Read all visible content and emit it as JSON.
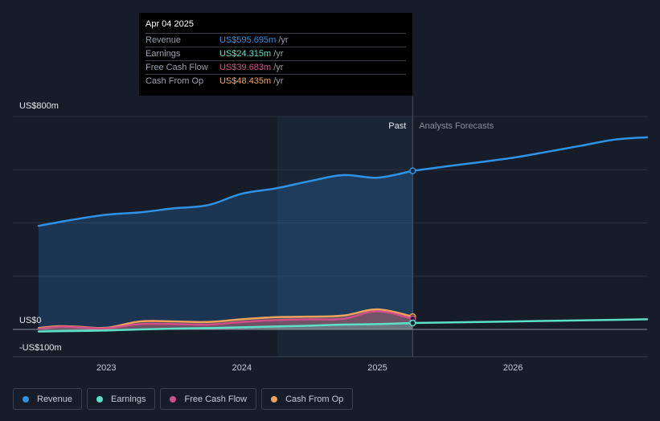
{
  "tooltip": {
    "date": "Apr 04 2025",
    "rows": [
      {
        "label": "Revenue",
        "value": "US$595.695m",
        "unit": "/yr",
        "color": "#2e93e6"
      },
      {
        "label": "Earnings",
        "value": "US$24.315m",
        "unit": "/yr",
        "color": "#5ce1c8"
      },
      {
        "label": "Free Cash Flow",
        "value": "US$39.683m",
        "unit": "/yr",
        "color": "#d04f8a"
      },
      {
        "label": "Cash From Op",
        "value": "US$48.435m",
        "unit": "/yr",
        "color": "#f0a35a"
      }
    ]
  },
  "legend": [
    {
      "label": "Revenue",
      "color": "#2e93e6"
    },
    {
      "label": "Earnings",
      "color": "#5ce1c8"
    },
    {
      "label": "Free Cash Flow",
      "color": "#d04f8a"
    },
    {
      "label": "Cash From Op",
      "color": "#f0a35a"
    }
  ],
  "chart_data": {
    "type": "area",
    "ylim": [
      -100,
      800
    ],
    "y_labels": [
      {
        "value": 800,
        "label": "US$800m"
      },
      {
        "value": 0,
        "label": "US$0"
      },
      {
        "value": -100,
        "label": "-US$100m"
      }
    ],
    "gridlines": [
      800,
      600,
      400,
      200,
      0
    ],
    "xlim": [
      2022.5,
      2026.99
    ],
    "x_ticks": [
      {
        "value": 2023.0,
        "label": "2023"
      },
      {
        "value": 2024.0,
        "label": "2024"
      },
      {
        "value": 2025.0,
        "label": "2025"
      },
      {
        "value": 2026.0,
        "label": "2026"
      }
    ],
    "past_label": "Past",
    "forecast_label": "Analysts Forecasts",
    "divider_x": 2025.26,
    "shade_start_x": 2024.26,
    "series": [
      {
        "name": "Revenue",
        "color": "#2e93e6",
        "fill": true,
        "points": [
          [
            2022.5,
            389
          ],
          [
            2022.75,
            412
          ],
          [
            2023.0,
            431
          ],
          [
            2023.25,
            440
          ],
          [
            2023.5,
            455
          ],
          [
            2023.75,
            467
          ],
          [
            2024.0,
            510
          ],
          [
            2024.25,
            530
          ],
          [
            2024.5,
            557
          ],
          [
            2024.75,
            580
          ],
          [
            2025.0,
            570
          ],
          [
            2025.26,
            596
          ]
        ],
        "forecast": [
          [
            2025.26,
            596
          ],
          [
            2025.5,
            612
          ],
          [
            2025.75,
            628
          ],
          [
            2026.0,
            645
          ],
          [
            2026.25,
            667
          ],
          [
            2026.5,
            690
          ],
          [
            2026.75,
            713
          ],
          [
            2026.99,
            722
          ]
        ]
      },
      {
        "name": "Earnings",
        "color": "#5ce1c8",
        "fill": true,
        "points": [
          [
            2022.5,
            -8
          ],
          [
            2022.75,
            -6
          ],
          [
            2023.0,
            -4
          ],
          [
            2023.25,
            0
          ],
          [
            2023.5,
            3
          ],
          [
            2023.75,
            5
          ],
          [
            2024.0,
            8
          ],
          [
            2024.25,
            11
          ],
          [
            2024.5,
            14
          ],
          [
            2024.75,
            18
          ],
          [
            2025.0,
            20
          ],
          [
            2025.26,
            24
          ]
        ],
        "forecast": [
          [
            2025.26,
            24
          ],
          [
            2025.75,
            28
          ],
          [
            2026.25,
            32
          ],
          [
            2026.75,
            36
          ],
          [
            2026.99,
            38
          ]
        ]
      },
      {
        "name": "Free Cash Flow",
        "color": "#d04f8a",
        "fill": true,
        "points": [
          [
            2022.5,
            2
          ],
          [
            2022.65,
            10
          ],
          [
            2022.8,
            8
          ],
          [
            2023.0,
            4
          ],
          [
            2023.25,
            20
          ],
          [
            2023.5,
            20
          ],
          [
            2023.75,
            18
          ],
          [
            2024.0,
            28
          ],
          [
            2024.25,
            35
          ],
          [
            2024.5,
            38
          ],
          [
            2024.75,
            40
          ],
          [
            2025.0,
            68
          ],
          [
            2025.26,
            40
          ]
        ]
      },
      {
        "name": "Cash From Op",
        "color": "#f0a35a",
        "fill": true,
        "points": [
          [
            2022.5,
            5
          ],
          [
            2022.65,
            12
          ],
          [
            2022.8,
            10
          ],
          [
            2023.0,
            6
          ],
          [
            2023.25,
            30
          ],
          [
            2023.5,
            30
          ],
          [
            2023.75,
            28
          ],
          [
            2024.0,
            38
          ],
          [
            2024.25,
            46
          ],
          [
            2024.5,
            48
          ],
          [
            2024.75,
            52
          ],
          [
            2025.0,
            75
          ],
          [
            2025.26,
            48
          ]
        ]
      }
    ]
  }
}
